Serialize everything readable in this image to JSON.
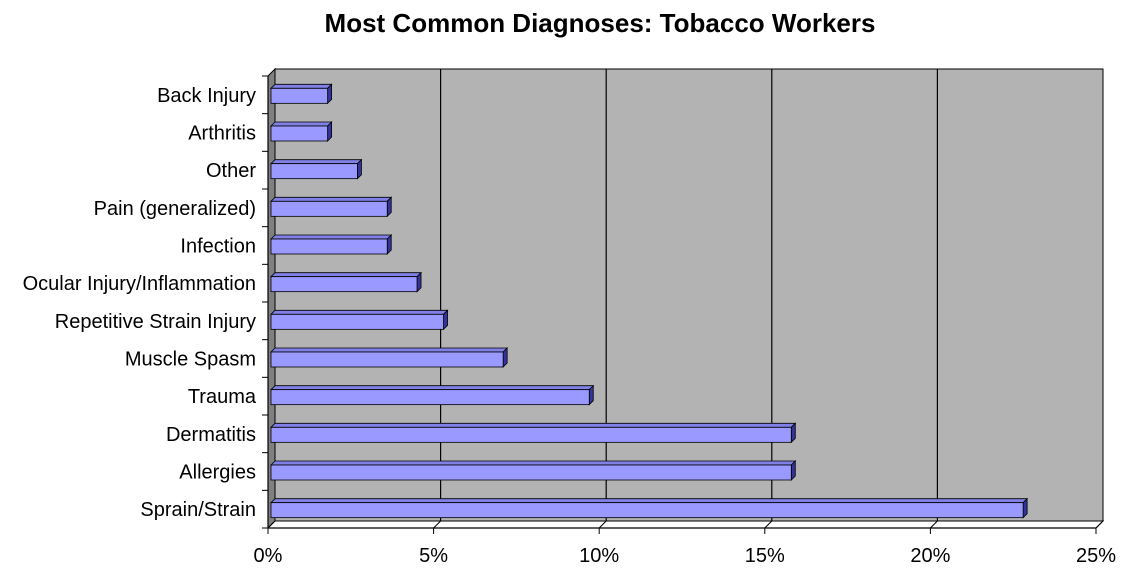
{
  "chart_data": {
    "type": "bar",
    "orientation": "horizontal",
    "title": "Most Common Diagnoses: Tobacco Workers",
    "xlabel": "",
    "ylabel": "",
    "categories": [
      "Back Injury",
      "Arthritis",
      "Other",
      "Pain (generalized)",
      "Infection",
      "Ocular Injury/Inflammation",
      "Repetitive Strain Injury",
      "Muscle Spasm",
      "Trauma",
      "Dermatitis",
      "Allergies",
      "Sprain/Strain"
    ],
    "values": [
      1.8,
      1.8,
      2.7,
      3.6,
      3.6,
      4.5,
      5.3,
      7.1,
      9.7,
      15.8,
      15.8,
      22.8
    ],
    "value_unit": "%",
    "xlim": [
      0,
      25
    ],
    "xticks": [
      "0%",
      "5%",
      "10%",
      "15%",
      "20%",
      "25%"
    ],
    "grid": true,
    "legend": "none",
    "colors": {
      "bar_face": "#9999ff",
      "bar_top": "#8080e6",
      "bar_side": "#333399",
      "plot_back": "#b3b3b3",
      "left_wall": "#808080",
      "gridline": "#000000"
    }
  }
}
